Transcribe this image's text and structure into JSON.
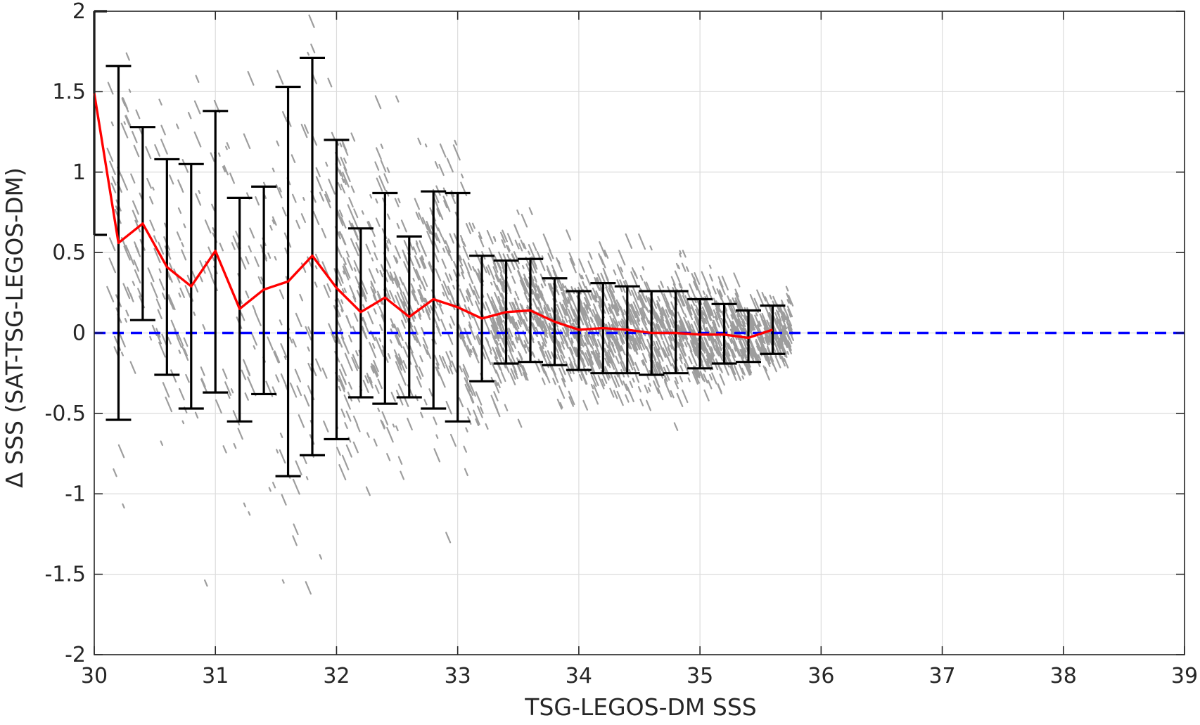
{
  "chart_data": {
    "type": "scatter",
    "xlabel": "TSG-LEGOS-DM SSS",
    "ylabel": "Δ SSS (SAT-TSG-LEGOS-DM)",
    "xlim": [
      30,
      39
    ],
    "ylim": [
      -2,
      2
    ],
    "x_ticks": [
      "30",
      "31",
      "32",
      "33",
      "34",
      "35",
      "36",
      "37",
      "38",
      "39"
    ],
    "y_ticks": [
      "2",
      "1.5",
      "1",
      "0.5",
      "0",
      "-0.5",
      "-1",
      "-1.5",
      "-2"
    ],
    "grid": true,
    "colors": {
      "scatter": "#8c8c8c",
      "mean_line": "#ff0000",
      "error_bars": "#000000",
      "zero_line": "#0000ff"
    },
    "scatter_description": "gray points (individual differences), densest between 33.3 and 35.7",
    "zero_reference": {
      "y": 0,
      "style": "dashed"
    },
    "binned_stats": {
      "x": [
        30.0,
        30.2,
        30.4,
        30.6,
        30.8,
        31.0,
        31.2,
        31.4,
        31.6,
        31.8,
        32.0,
        32.2,
        32.4,
        32.6,
        32.8,
        33.0,
        33.2,
        33.4,
        33.6,
        33.8,
        34.0,
        34.2,
        34.4,
        34.6,
        34.8,
        35.0,
        35.2,
        35.4,
        35.6
      ],
      "mean": [
        1.49,
        0.56,
        0.68,
        0.41,
        0.29,
        0.51,
        0.15,
        0.27,
        0.32,
        0.48,
        0.28,
        0.13,
        0.22,
        0.1,
        0.21,
        0.16,
        0.09,
        0.13,
        0.14,
        0.07,
        0.02,
        0.03,
        0.02,
        0.0,
        0.0,
        -0.01,
        -0.01,
        -0.03,
        0.02
      ],
      "upper": [
        2.0,
        1.66,
        1.28,
        1.08,
        1.05,
        1.38,
        0.84,
        0.91,
        1.53,
        1.71,
        1.2,
        0.65,
        0.87,
        0.6,
        0.88,
        0.87,
        0.48,
        0.45,
        0.46,
        0.34,
        0.26,
        0.31,
        0.29,
        0.26,
        0.26,
        0.21,
        0.18,
        0.14,
        0.17
      ],
      "lower": [
        0.61,
        -0.54,
        0.08,
        -0.26,
        -0.47,
        -0.37,
        -0.55,
        -0.38,
        -0.89,
        -0.76,
        -0.66,
        -0.4,
        -0.44,
        -0.4,
        -0.47,
        -0.55,
        -0.3,
        -0.19,
        -0.18,
        -0.2,
        -0.23,
        -0.25,
        -0.25,
        -0.26,
        -0.25,
        -0.22,
        -0.19,
        -0.18,
        -0.13
      ]
    }
  }
}
